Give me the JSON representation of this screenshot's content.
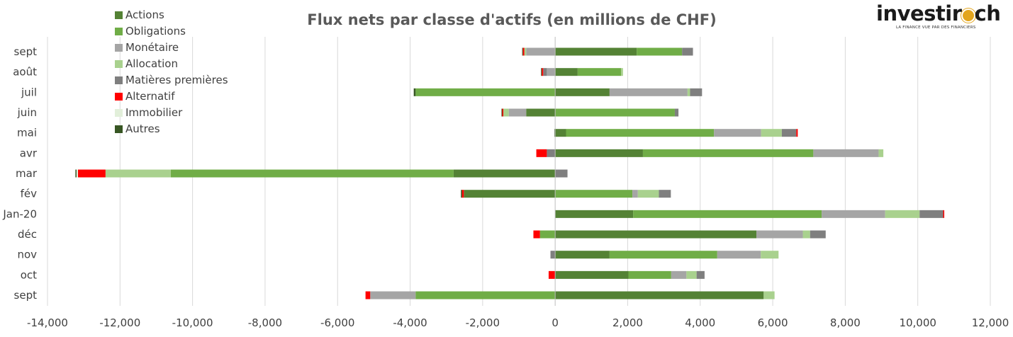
{
  "logo": {
    "text_left": "investir",
    "text_right": "ch",
    "tagline": "LA FINANCE VUE PAR DES FINANCIERS"
  },
  "chart_data": {
    "type": "bar",
    "orientation": "horizontal",
    "stacked": true,
    "title": "Flux nets par classe d'actifs (en millions de CHF)",
    "xlim": [
      -14000,
      12000
    ],
    "x_ticks": [
      -14000,
      -12000,
      -10000,
      -8000,
      -6000,
      -4000,
      -2000,
      0,
      2000,
      4000,
      6000,
      8000,
      10000,
      12000
    ],
    "x_tick_labels": [
      "-14,000",
      "-12,000",
      "-10,000",
      "-8,000",
      "-6,000",
      "-4,000",
      "-2,000",
      "0",
      "2,000",
      "4,000",
      "6,000",
      "8,000",
      "10,000",
      "12,000"
    ],
    "grid": "vertical",
    "legend_position": "top-left",
    "categories": [
      "sept",
      "août",
      "juil",
      "juin",
      "mai",
      "avr",
      "mar",
      "fév",
      "Jan-20",
      "déc",
      "nov",
      "oct",
      "sept"
    ],
    "series": [
      {
        "name": "Actions",
        "color": "#548235",
        "values": [
          2250,
          620,
          1500,
          -800,
          300,
          2420,
          -2800,
          -2520,
          2150,
          5550,
          1500,
          2020,
          5750
        ]
      },
      {
        "name": "Obligations",
        "color": "#70ad47",
        "values": [
          1250,
          1200,
          -3850,
          3300,
          4080,
          4700,
          -7800,
          2130,
          5200,
          -420,
          2970,
          1180,
          -3850
        ]
      },
      {
        "name": "Monétaire",
        "color": "#a5a5a5",
        "values": [
          -800,
          -230,
          2150,
          -480,
          1300,
          1800,
          0,
          150,
          1750,
          1280,
          1200,
          420,
          -1250
        ]
      },
      {
        "name": "Allocation",
        "color": "#a9d18e",
        "values": [
          -50,
          50,
          70,
          -150,
          570,
          130,
          -1800,
          580,
          950,
          200,
          490,
          280,
          300
        ]
      },
      {
        "name": "Matières premières",
        "color": "#7f7f7f",
        "values": [
          300,
          -100,
          330,
          100,
          400,
          -230,
          340,
          330,
          650,
          430,
          -130,
          220,
          0
        ]
      },
      {
        "name": "Alternatif",
        "color": "#ff0000",
        "values": [
          -40,
          -40,
          0,
          -30,
          40,
          -290,
          -760,
          -50,
          30,
          -180,
          0,
          -180,
          -130
        ]
      },
      {
        "name": "Immobilier",
        "color": "#e2efda",
        "values": [
          0,
          0,
          0,
          0,
          0,
          0,
          -40,
          0,
          0,
          0,
          0,
          0,
          0
        ]
      },
      {
        "name": "Autres",
        "color": "#375623",
        "values": [
          -20,
          -20,
          -50,
          -20,
          -20,
          0,
          -30,
          -30,
          0,
          0,
          0,
          0,
          0
        ]
      }
    ]
  }
}
